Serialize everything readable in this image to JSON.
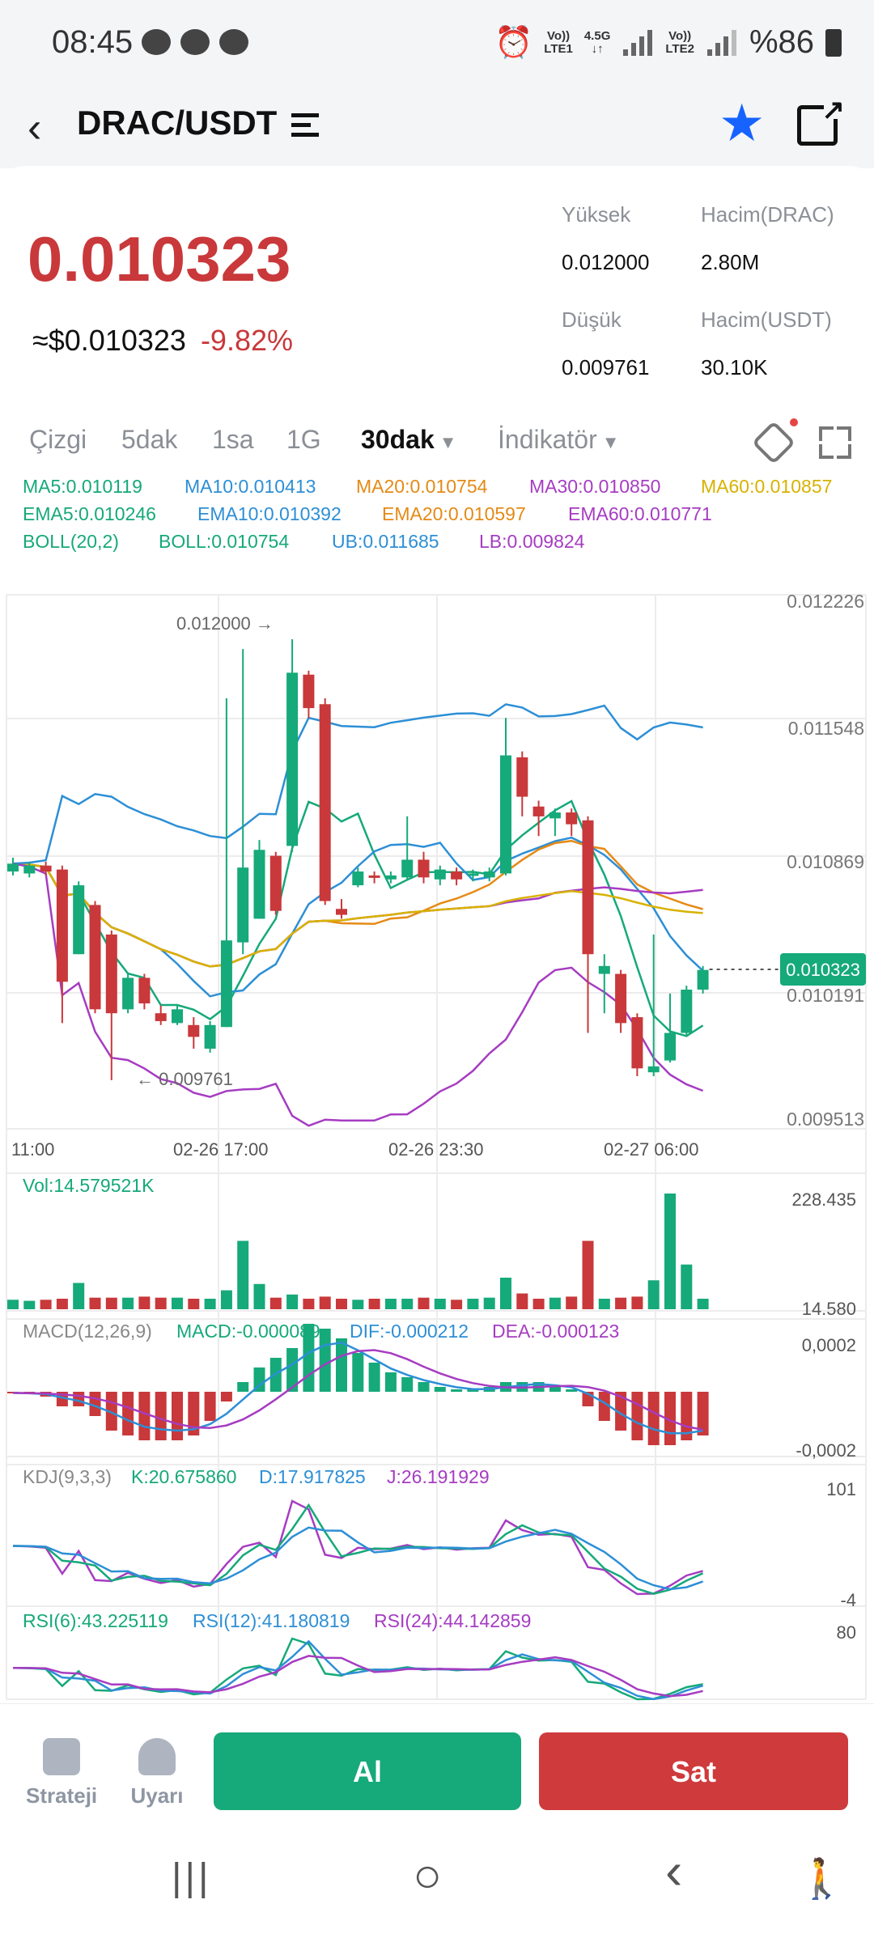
{
  "status": {
    "time": "08:45",
    "sim1_top": "Vo))",
    "sim1_bot": "LTE1",
    "net_top": "4.5G",
    "net_bot": "↓↑",
    "sim2_top": "Vo))",
    "sim2_bot": "LTE2",
    "battery": "%86"
  },
  "header": {
    "pair": "DRAC/USDT",
    "icons": [
      "back-icon",
      "menu-icon",
      "star-icon",
      "share-icon"
    ]
  },
  "price": {
    "last": "0.010323",
    "usd": "≈$0.010323",
    "change": "-9.82%",
    "color_down": "#c9383a",
    "color_up": "#16a97a"
  },
  "stats": {
    "high_label": "Yüksek",
    "high": "0.012000",
    "vol_base_label": "Hacim(DRAC)",
    "vol_base": "2.80M",
    "low_label": "Düşük",
    "low": "0.009761",
    "vol_quote_label": "Hacim(USDT)",
    "vol_quote": "30.10K"
  },
  "tabs": {
    "line": "Çizgi",
    "m5": "5dak",
    "h1": "1sa",
    "d1": "1G",
    "m30": "30dak",
    "indicator": "İndikatör"
  },
  "legends": {
    "ma5": "MA5:0.010119",
    "ma10": "MA10:0.010413",
    "ma20": "MA20:0.010754",
    "ma30": "MA30:0.010850",
    "ma60": "MA60:0.010857",
    "ema5": "EMA5:0.010246",
    "ema10": "EMA10:0.010392",
    "ema20": "EMA20:0.010597",
    "ema60": "EMA60:0.010771",
    "boll": "BOLL(20,2)",
    "bollv": "BOLL:0.010754",
    "ub": "UB:0.011685",
    "lb": "LB:0.009824",
    "vol": "Vol:14.579521K",
    "macd": "MACD(12,26,9)",
    "macdv": "MACD:-0.000089",
    "dif": "DIF:-0.000212",
    "dea": "DEA:-0.000123",
    "kdj": "KDJ(9,3,3)",
    "k": "K:20.675860",
    "d": "D:17.917825",
    "j": "J:26.191929",
    "rsi6": "RSI(6):43.225119",
    "rsi12": "RSI(12):41.180819",
    "rsi24": "RSI(24):44.142859"
  },
  "chart_data": {
    "type": "candlestick",
    "interval": "30dak",
    "price_ticks": [
      "0.012226",
      "0.011548",
      "0.010869",
      "0.010191",
      "0.009513"
    ],
    "time_ticks": [
      "11:00",
      "02-26 17:00",
      "02-26 23:30",
      "02-27 06:00"
    ],
    "max_label": "0.012000 →",
    "min_label": "← 0.009761",
    "last_label": "0.010323",
    "ylim": [
      0.009513,
      0.012226
    ],
    "candles": [
      [
        0.01082,
        0.01086,
        0.0108,
        0.01089
      ],
      [
        0.01081,
        0.01085,
        0.01079,
        0.01087
      ],
      [
        0.01085,
        0.01082,
        0.0108,
        0.01087
      ],
      [
        0.01083,
        0.01026,
        0.01005,
        0.01085
      ],
      [
        0.0104,
        0.01075,
        0.0104,
        0.01077
      ],
      [
        0.01065,
        0.01012,
        0.0101,
        0.01067
      ],
      [
        0.0105,
        0.0101,
        0.00976,
        0.01052
      ],
      [
        0.01012,
        0.01028,
        0.0101,
        0.0103
      ],
      [
        0.01028,
        0.01015,
        0.01012,
        0.0103
      ],
      [
        0.0101,
        0.01006,
        0.01004,
        0.01014
      ],
      [
        0.01005,
        0.01012,
        0.01004,
        0.01014
      ],
      [
        0.01004,
        0.00998,
        0.00992,
        0.01008
      ],
      [
        0.00992,
        0.01004,
        0.0099,
        0.01006
      ],
      [
        0.01003,
        0.01047,
        0.01003,
        0.0117
      ],
      [
        0.01046,
        0.01084,
        0.0104,
        0.01195
      ],
      [
        0.01058,
        0.01093,
        0.01058,
        0.01098
      ],
      [
        0.0109,
        0.01062,
        0.0106,
        0.01092
      ],
      [
        0.01095,
        0.01183,
        0.01092,
        0.012
      ],
      [
        0.01182,
        0.01165,
        0.0116,
        0.01184
      ],
      [
        0.01167,
        0.01067,
        0.01065,
        0.0117
      ],
      [
        0.01063,
        0.0106,
        0.01058,
        0.01068
      ],
      [
        0.01075,
        0.01082,
        0.01074,
        0.01084
      ],
      [
        0.0108,
        0.01079,
        0.01076,
        0.01082
      ],
      [
        0.01078,
        0.0108,
        0.01076,
        0.01082
      ],
      [
        0.01079,
        0.01088,
        0.01078,
        0.0111
      ],
      [
        0.01088,
        0.01079,
        0.01076,
        0.01092
      ],
      [
        0.01078,
        0.01083,
        0.01075,
        0.01085
      ],
      [
        0.01082,
        0.01078,
        0.01075,
        0.01084
      ],
      [
        0.0108,
        0.01081,
        0.01077,
        0.01083
      ],
      [
        0.01079,
        0.01082,
        0.01077,
        0.01084
      ],
      [
        0.01081,
        0.01141,
        0.0108,
        0.0116
      ],
      [
        0.0114,
        0.0112,
        0.0111,
        0.01143
      ],
      [
        0.01115,
        0.0111,
        0.011,
        0.01118
      ],
      [
        0.01109,
        0.01112,
        0.011,
        0.01114
      ],
      [
        0.01112,
        0.01106,
        0.011,
        0.01114
      ],
      [
        0.01108,
        0.0104,
        0.01,
        0.0111
      ],
      [
        0.0103,
        0.01034,
        0.0101,
        0.0104
      ],
      [
        0.0103,
        0.01005,
        0.01,
        0.01032
      ],
      [
        0.01008,
        0.00982,
        0.00978,
        0.0101
      ],
      [
        0.0098,
        0.00983,
        0.00978,
        0.0105
      ],
      [
        0.00986,
        0.01,
        0.00985,
        0.0102
      ],
      [
        0.01,
        0.01022,
        0.00998,
        0.01024
      ],
      [
        0.01022,
        0.01032,
        0.0102,
        0.01034
      ]
    ],
    "vol_ticks": [
      "228.435",
      "14.580"
    ],
    "volumes": [
      18,
      16,
      18,
      20,
      50,
      22,
      22,
      22,
      24,
      22,
      22,
      20,
      20,
      36,
      130,
      48,
      22,
      28,
      20,
      24,
      20,
      18,
      20,
      20,
      20,
      22,
      20,
      18,
      20,
      22,
      60,
      30,
      20,
      22,
      24,
      130,
      20,
      22,
      24,
      55,
      220,
      85,
      20
    ],
    "macd_ticks": [
      "0,0002",
      "-0,0002"
    ],
    "macd_hist": [
      -3e-06,
      -5e-06,
      -1e-05,
      -3e-05,
      -3e-05,
      -5e-05,
      -8e-05,
      -9e-05,
      -0.0001,
      -0.0001,
      -0.0001,
      -9e-05,
      -6e-05,
      -2e-05,
      2e-05,
      5e-05,
      7e-05,
      9e-05,
      0.00014,
      0.00013,
      0.00011,
      8e-05,
      6e-05,
      4e-05,
      3e-05,
      2e-05,
      1e-05,
      5e-06,
      5e-06,
      1e-05,
      2e-05,
      2e-05,
      2e-05,
      1e-05,
      5e-06,
      -3e-05,
      -6e-05,
      -8e-05,
      -0.0001,
      -0.00011,
      -0.00011,
      -0.0001,
      -9e-05
    ],
    "kdj_ticks": [
      "101",
      "-4"
    ],
    "rsi_ticks": [
      "80"
    ]
  },
  "bottom": {
    "strategy": "Strateji",
    "alert": "Uyarı",
    "buy": "Al",
    "sell": "Sat",
    "buy_color": "#16a97a",
    "sell_color": "#cf3a3c"
  },
  "nav": {
    "recent": "|||",
    "home": "○",
    "back": "‹",
    "access": "accessibility-icon"
  }
}
